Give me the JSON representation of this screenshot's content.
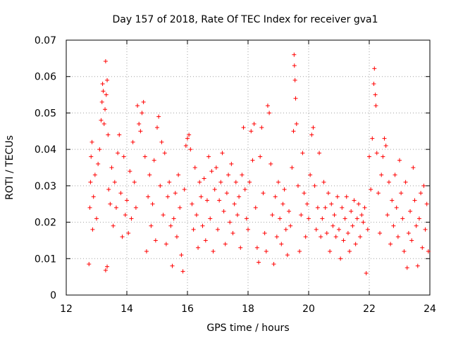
{
  "chart_data": {
    "type": "scatter",
    "title": "Day 157 of 2018, Rate Of TEC Index for receiver gva1",
    "xlabel": "GPS time / hours",
    "ylabel": "ROTI / TECUs",
    "xlim": [
      12,
      24
    ],
    "ylim": [
      0,
      0.07
    ],
    "xticks": [
      "12",
      "14",
      "16",
      "18",
      "20",
      "22",
      "24"
    ],
    "yticks": [
      "0",
      "0.01",
      "0.02",
      "0.03",
      "0.04",
      "0.05",
      "0.06",
      "0.07"
    ],
    "grid": true,
    "marker": "+",
    "series_color": "#ff0000",
    "series": [
      {
        "name": "ROTI",
        "points": [
          [
            12.75,
            0.0085
          ],
          [
            12.78,
            0.024
          ],
          [
            12.8,
            0.031
          ],
          [
            12.82,
            0.038
          ],
          [
            12.85,
            0.042
          ],
          [
            12.87,
            0.018
          ],
          [
            12.9,
            0.027
          ],
          [
            12.95,
            0.033
          ],
          [
            13.0,
            0.021
          ],
          [
            13.05,
            0.036
          ],
          [
            13.1,
            0.04
          ],
          [
            13.15,
            0.048
          ],
          [
            13.18,
            0.053
          ],
          [
            13.2,
            0.058
          ],
          [
            13.22,
            0.056
          ],
          [
            13.25,
            0.047
          ],
          [
            13.28,
            0.051
          ],
          [
            13.3,
            0.0642
          ],
          [
            13.32,
            0.055
          ],
          [
            13.35,
            0.059
          ],
          [
            13.38,
            0.044
          ],
          [
            13.3,
            0.0068
          ],
          [
            13.35,
            0.0078
          ],
          [
            13.4,
            0.029
          ],
          [
            13.45,
            0.025
          ],
          [
            13.5,
            0.035
          ],
          [
            13.55,
            0.019
          ],
          [
            13.6,
            0.031
          ],
          [
            13.65,
            0.024
          ],
          [
            13.7,
            0.039
          ],
          [
            13.75,
            0.044
          ],
          [
            13.8,
            0.028
          ],
          [
            13.85,
            0.016
          ],
          [
            13.9,
            0.038
          ],
          [
            13.95,
            0.022
          ],
          [
            14.0,
            0.026
          ],
          [
            14.05,
            0.017
          ],
          [
            14.1,
            0.034
          ],
          [
            14.15,
            0.021
          ],
          [
            14.2,
            0.042
          ],
          [
            14.25,
            0.031
          ],
          [
            14.3,
            0.024
          ],
          [
            14.35,
            0.052
          ],
          [
            14.4,
            0.047
          ],
          [
            14.45,
            0.045
          ],
          [
            14.5,
            0.05
          ],
          [
            14.55,
            0.053
          ],
          [
            14.6,
            0.038
          ],
          [
            14.65,
            0.012
          ],
          [
            14.7,
            0.027
          ],
          [
            14.75,
            0.033
          ],
          [
            14.8,
            0.019
          ],
          [
            14.85,
            0.025
          ],
          [
            14.9,
            0.037
          ],
          [
            14.95,
            0.015
          ],
          [
            15.0,
            0.046
          ],
          [
            15.05,
            0.049
          ],
          [
            15.1,
            0.03
          ],
          [
            15.15,
            0.042
          ],
          [
            15.2,
            0.022
          ],
          [
            15.25,
            0.039
          ],
          [
            15.3,
            0.014
          ],
          [
            15.35,
            0.027
          ],
          [
            15.4,
            0.031
          ],
          [
            15.45,
            0.019
          ],
          [
            15.5,
            0.008
          ],
          [
            15.55,
            0.021
          ],
          [
            15.6,
            0.028
          ],
          [
            15.65,
            0.016
          ],
          [
            15.7,
            0.033
          ],
          [
            15.75,
            0.024
          ],
          [
            15.8,
            0.011
          ],
          [
            15.85,
            0.0065
          ],
          [
            15.9,
            0.029
          ],
          [
            15.95,
            0.041
          ],
          [
            16.0,
            0.043
          ],
          [
            16.05,
            0.044
          ],
          [
            16.1,
            0.04
          ],
          [
            16.15,
            0.025
          ],
          [
            16.2,
            0.018
          ],
          [
            16.25,
            0.035
          ],
          [
            16.3,
            0.022
          ],
          [
            16.35,
            0.013
          ],
          [
            16.4,
            0.031
          ],
          [
            16.45,
            0.027
          ],
          [
            16.5,
            0.019
          ],
          [
            16.55,
            0.032
          ],
          [
            16.6,
            0.015
          ],
          [
            16.65,
            0.026
          ],
          [
            16.7,
            0.038
          ],
          [
            16.75,
            0.021
          ],
          [
            16.8,
            0.034
          ],
          [
            16.85,
            0.012
          ],
          [
            16.9,
            0.029
          ],
          [
            16.95,
            0.035
          ],
          [
            17.0,
            0.018
          ],
          [
            17.05,
            0.026
          ],
          [
            17.1,
            0.031
          ],
          [
            17.15,
            0.039
          ],
          [
            17.2,
            0.023
          ],
          [
            17.25,
            0.014
          ],
          [
            17.3,
            0.028
          ],
          [
            17.35,
            0.033
          ],
          [
            17.4,
            0.02
          ],
          [
            17.45,
            0.036
          ],
          [
            17.5,
            0.017
          ],
          [
            17.55,
            0.025
          ],
          [
            17.6,
            0.031
          ],
          [
            17.65,
            0.022
          ],
          [
            17.7,
            0.027
          ],
          [
            17.75,
            0.013
          ],
          [
            17.8,
            0.033
          ],
          [
            17.85,
            0.046
          ],
          [
            17.9,
            0.029
          ],
          [
            17.95,
            0.021
          ],
          [
            18.0,
            0.018
          ],
          [
            18.05,
            0.031
          ],
          [
            18.1,
            0.045
          ],
          [
            18.15,
            0.037
          ],
          [
            18.2,
            0.047
          ],
          [
            18.25,
            0.024
          ],
          [
            18.3,
            0.013
          ],
          [
            18.35,
            0.009
          ],
          [
            18.4,
            0.038
          ],
          [
            18.45,
            0.046
          ],
          [
            18.5,
            0.028
          ],
          [
            18.55,
            0.017
          ],
          [
            18.6,
            0.012
          ],
          [
            18.65,
            0.052
          ],
          [
            18.7,
            0.05
          ],
          [
            18.75,
            0.036
          ],
          [
            18.8,
            0.022
          ],
          [
            18.85,
            0.0085
          ],
          [
            18.9,
            0.027
          ],
          [
            18.95,
            0.016
          ],
          [
            19.0,
            0.031
          ],
          [
            19.05,
            0.021
          ],
          [
            19.1,
            0.014
          ],
          [
            19.15,
            0.025
          ],
          [
            19.2,
            0.029
          ],
          [
            19.25,
            0.018
          ],
          [
            19.3,
            0.011
          ],
          [
            19.35,
            0.023
          ],
          [
            19.4,
            0.019
          ],
          [
            19.45,
            0.035
          ],
          [
            19.5,
            0.045
          ],
          [
            19.52,
            0.066
          ],
          [
            19.53,
            0.063
          ],
          [
            19.55,
            0.059
          ],
          [
            19.57,
            0.054
          ],
          [
            19.6,
            0.047
          ],
          [
            19.65,
            0.03
          ],
          [
            19.7,
            0.012
          ],
          [
            19.75,
            0.022
          ],
          [
            19.8,
            0.039
          ],
          [
            19.85,
            0.028
          ],
          [
            19.9,
            0.016
          ],
          [
            19.95,
            0.025
          ],
          [
            20.0,
            0.021
          ],
          [
            20.05,
            0.033
          ],
          [
            20.1,
            0.044
          ],
          [
            20.15,
            0.046
          ],
          [
            20.2,
            0.03
          ],
          [
            20.25,
            0.018
          ],
          [
            20.3,
            0.024
          ],
          [
            20.35,
            0.039
          ],
          [
            20.4,
            0.016
          ],
          [
            20.45,
            0.021
          ],
          [
            20.5,
            0.031
          ],
          [
            20.55,
            0.024
          ],
          [
            20.6,
            0.017
          ],
          [
            20.65,
            0.028
          ],
          [
            20.7,
            0.012
          ],
          [
            20.75,
            0.025
          ],
          [
            20.8,
            0.019
          ],
          [
            20.85,
            0.022
          ],
          [
            20.9,
            0.016
          ],
          [
            20.95,
            0.027
          ],
          [
            21.0,
            0.018
          ],
          [
            21.05,
            0.01
          ],
          [
            21.1,
            0.024
          ],
          [
            21.15,
            0.015
          ],
          [
            21.2,
            0.021
          ],
          [
            21.25,
            0.027
          ],
          [
            21.3,
            0.017
          ],
          [
            21.35,
            0.012
          ],
          [
            21.4,
            0.023
          ],
          [
            21.45,
            0.019
          ],
          [
            21.5,
            0.026
          ],
          [
            21.55,
            0.014
          ],
          [
            21.6,
            0.021
          ],
          [
            21.65,
            0.025
          ],
          [
            21.7,
            0.016
          ],
          [
            21.75,
            0.022
          ],
          [
            21.8,
            0.02
          ],
          [
            21.85,
            0.024
          ],
          [
            21.9,
            0.006
          ],
          [
            21.95,
            0.018
          ],
          [
            22.0,
            0.038
          ],
          [
            22.05,
            0.029
          ],
          [
            22.1,
            0.043
          ],
          [
            22.15,
            0.058
          ],
          [
            22.17,
            0.0622
          ],
          [
            22.2,
            0.055
          ],
          [
            22.22,
            0.052
          ],
          [
            22.25,
            0.039
          ],
          [
            22.3,
            0.028
          ],
          [
            22.35,
            0.017
          ],
          [
            22.4,
            0.033
          ],
          [
            22.45,
            0.038
          ],
          [
            22.5,
            0.043
          ],
          [
            22.55,
            0.041
          ],
          [
            22.6,
            0.022
          ],
          [
            22.65,
            0.031
          ],
          [
            22.7,
            0.014
          ],
          [
            22.75,
            0.026
          ],
          [
            22.8,
            0.019
          ],
          [
            22.85,
            0.033
          ],
          [
            22.9,
            0.024
          ],
          [
            22.95,
            0.016
          ],
          [
            23.0,
            0.037
          ],
          [
            23.05,
            0.028
          ],
          [
            23.1,
            0.021
          ],
          [
            23.15,
            0.012
          ],
          [
            23.2,
            0.031
          ],
          [
            23.25,
            0.0075
          ],
          [
            23.3,
            0.017
          ],
          [
            23.35,
            0.023
          ],
          [
            23.4,
            0.015
          ],
          [
            23.45,
            0.035
          ],
          [
            23.5,
            0.026
          ],
          [
            23.55,
            0.019
          ],
          [
            23.6,
            0.008
          ],
          [
            23.65,
            0.021
          ],
          [
            23.7,
            0.028
          ],
          [
            23.75,
            0.013
          ],
          [
            23.8,
            0.03
          ],
          [
            23.85,
            0.018
          ],
          [
            23.9,
            0.025
          ],
          [
            23.95,
            0.012
          ]
        ]
      }
    ]
  }
}
